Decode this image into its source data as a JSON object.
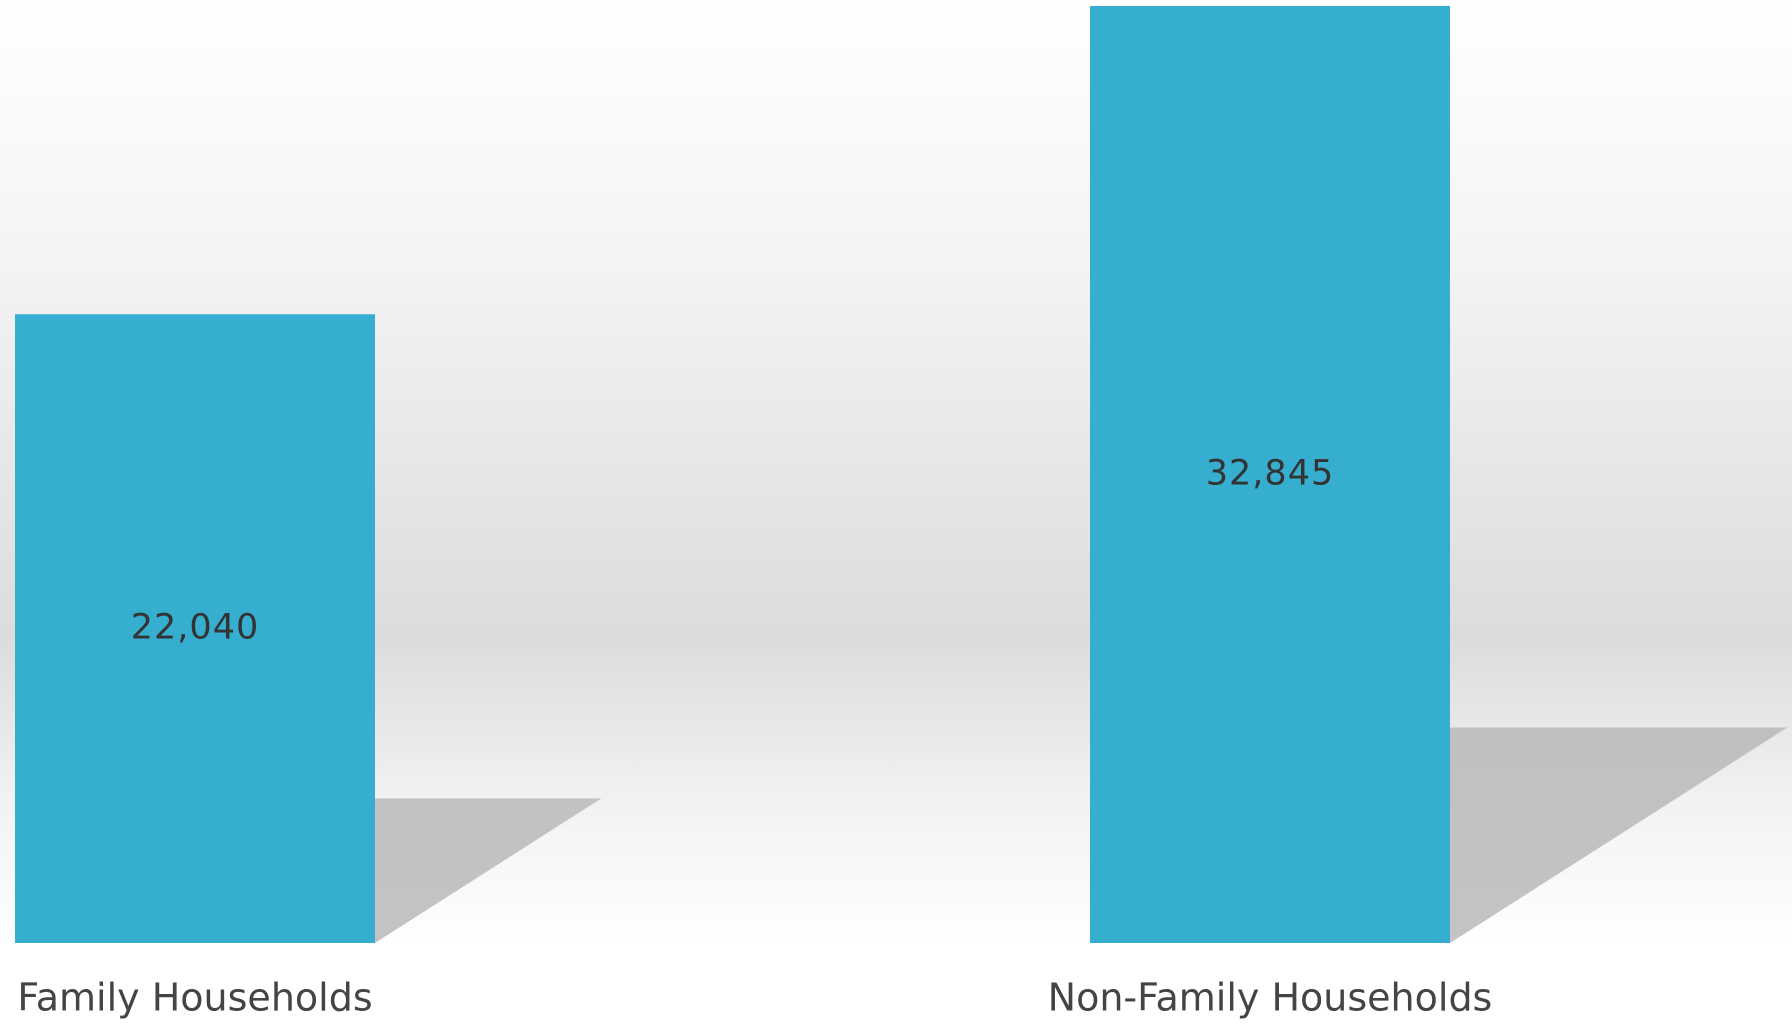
{
  "chart_data": {
    "type": "bar",
    "categories": [
      "Family Households",
      "Non-Family Households"
    ],
    "values": [
      22040,
      32845
    ],
    "value_labels": [
      "22,040",
      "32,845"
    ],
    "color": "#36aecf"
  }
}
